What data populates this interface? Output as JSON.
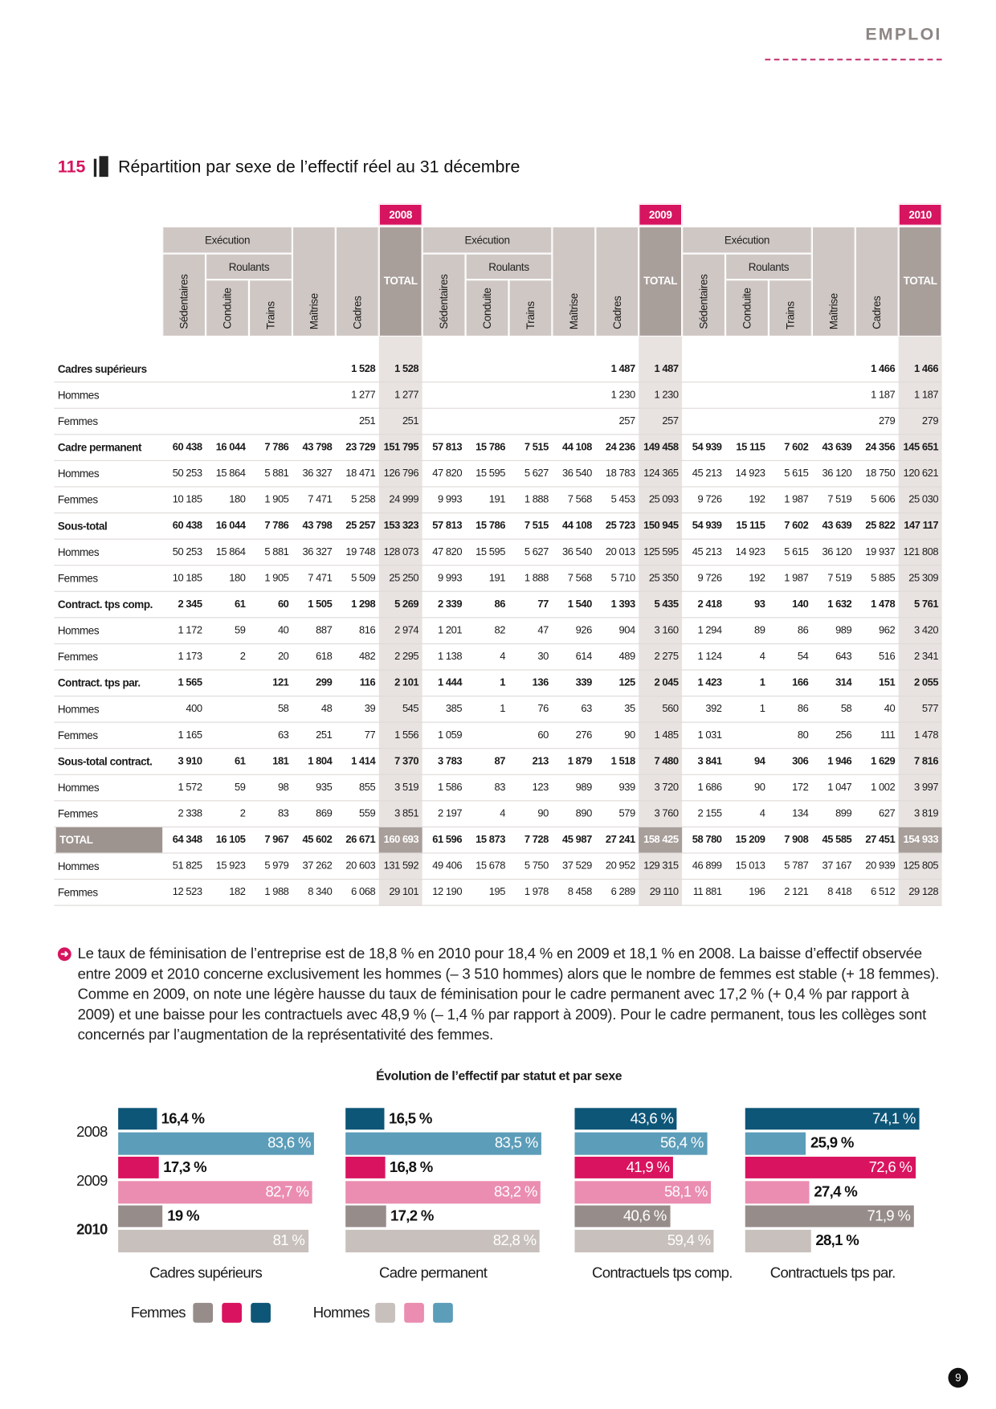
{
  "header": {
    "section": "EMPLOI",
    "page_number": "9"
  },
  "table": {
    "number": "115",
    "title": "Répartition par sexe de l’effectif réel au 31 décembre",
    "years": [
      "2008",
      "2009",
      "2010"
    ],
    "execution_label": "Exécution",
    "roulants_label": "Roulants",
    "columns": [
      "Sédentaires",
      "Conduite",
      "Trains",
      "Maîtrise",
      "Cadres"
    ],
    "total_label": "TOTAL",
    "rows": [
      {
        "label": "Cadres supérieurs",
        "bold": true,
        "cells": [
          null,
          null,
          null,
          null,
          "1 528",
          "1 528",
          null,
          null,
          null,
          null,
          "1 487",
          "1 487",
          null,
          null,
          null,
          null,
          "1 466",
          "1 466"
        ]
      },
      {
        "label": "Hommes",
        "cells": [
          null,
          null,
          null,
          null,
          "1 277",
          "1 277",
          null,
          null,
          null,
          null,
          "1 230",
          "1 230",
          null,
          null,
          null,
          null,
          "1 187",
          "1 187"
        ]
      },
      {
        "label": "Femmes",
        "cells": [
          null,
          null,
          null,
          null,
          "251",
          "251",
          null,
          null,
          null,
          null,
          "257",
          "257",
          null,
          null,
          null,
          null,
          "279",
          "279"
        ]
      },
      {
        "label": "Cadre permanent",
        "bold": true,
        "cells": [
          "60 438",
          "16 044",
          "7 786",
          "43 798",
          "23 729",
          "151 795",
          "57 813",
          "15 786",
          "7 515",
          "44 108",
          "24 236",
          "149 458",
          "54 939",
          "15 115",
          "7 602",
          "43 639",
          "24 356",
          "145 651"
        ]
      },
      {
        "label": "Hommes",
        "cells": [
          "50 253",
          "15 864",
          "5 881",
          "36 327",
          "18 471",
          "126 796",
          "47 820",
          "15 595",
          "5 627",
          "36 540",
          "18 783",
          "124 365",
          "45 213",
          "14 923",
          "5 615",
          "36 120",
          "18 750",
          "120 621"
        ]
      },
      {
        "label": "Femmes",
        "cells": [
          "10 185",
          "180",
          "1 905",
          "7 471",
          "5 258",
          "24 999",
          "9 993",
          "191",
          "1 888",
          "7 568",
          "5 453",
          "25 093",
          "9 726",
          "192",
          "1 987",
          "7 519",
          "5 606",
          "25 030"
        ]
      },
      {
        "label": "Sous-total",
        "bold": true,
        "cells": [
          "60 438",
          "16 044",
          "7 786",
          "43 798",
          "25 257",
          "153 323",
          "57 813",
          "15 786",
          "7 515",
          "44 108",
          "25 723",
          "150 945",
          "54 939",
          "15 115",
          "7 602",
          "43 639",
          "25 822",
          "147 117"
        ]
      },
      {
        "label": "Hommes",
        "cells": [
          "50 253",
          "15 864",
          "5 881",
          "36 327",
          "19 748",
          "128 073",
          "47 820",
          "15 595",
          "5 627",
          "36 540",
          "20 013",
          "125 595",
          "45 213",
          "14 923",
          "5 615",
          "36 120",
          "19 937",
          "121 808"
        ]
      },
      {
        "label": "Femmes",
        "cells": [
          "10 185",
          "180",
          "1 905",
          "7 471",
          "5 509",
          "25 250",
          "9 993",
          "191",
          "1 888",
          "7 568",
          "5 710",
          "25 350",
          "9 726",
          "192",
          "1 987",
          "7 519",
          "5 885",
          "25 309"
        ]
      },
      {
        "label": "Contract. tps comp.",
        "bold": true,
        "cells": [
          "2 345",
          "61",
          "60",
          "1 505",
          "1 298",
          "5 269",
          "2 339",
          "86",
          "77",
          "1 540",
          "1 393",
          "5 435",
          "2 418",
          "93",
          "140",
          "1 632",
          "1 478",
          "5 761"
        ]
      },
      {
        "label": "Hommes",
        "cells": [
          "1 172",
          "59",
          "40",
          "887",
          "816",
          "2 974",
          "1 201",
          "82",
          "47",
          "926",
          "904",
          "3 160",
          "1 294",
          "89",
          "86",
          "989",
          "962",
          "3 420"
        ]
      },
      {
        "label": "Femmes",
        "cells": [
          "1 173",
          "2",
          "20",
          "618",
          "482",
          "2 295",
          "1 138",
          "4",
          "30",
          "614",
          "489",
          "2 275",
          "1 124",
          "4",
          "54",
          "643",
          "516",
          "2 341"
        ]
      },
      {
        "label": "Contract. tps par.",
        "bold": true,
        "cells": [
          "1 565",
          null,
          "121",
          "299",
          "116",
          "2 101",
          "1 444",
          "1",
          "136",
          "339",
          "125",
          "2 045",
          "1 423",
          "1",
          "166",
          "314",
          "151",
          "2 055"
        ]
      },
      {
        "label": "Hommes",
        "cells": [
          "400",
          null,
          "58",
          "48",
          "39",
          "545",
          "385",
          "1",
          "76",
          "63",
          "35",
          "560",
          "392",
          "1",
          "86",
          "58",
          "40",
          "577"
        ]
      },
      {
        "label": "Femmes",
        "cells": [
          "1 165",
          null,
          "63",
          "251",
          "77",
          "1 556",
          "1 059",
          null,
          "60",
          "276",
          "90",
          "1 485",
          "1 031",
          null,
          "80",
          "256",
          "111",
          "1 478"
        ]
      },
      {
        "label": "Sous-total contract.",
        "bold": true,
        "cells": [
          "3 910",
          "61",
          "181",
          "1 804",
          "1 414",
          "7 370",
          "3 783",
          "87",
          "213",
          "1 879",
          "1 518",
          "7 480",
          "3 841",
          "94",
          "306",
          "1 946",
          "1 629",
          "7 816"
        ]
      },
      {
        "label": "Hommes",
        "cells": [
          "1 572",
          "59",
          "98",
          "935",
          "855",
          "3 519",
          "1 586",
          "83",
          "123",
          "989",
          "939",
          "3 720",
          "1 686",
          "90",
          "172",
          "1 047",
          "1 002",
          "3 997"
        ]
      },
      {
        "label": "Femmes",
        "cells": [
          "2 338",
          "2",
          "83",
          "869",
          "559",
          "3 851",
          "2 197",
          "4",
          "90",
          "890",
          "579",
          "3 760",
          "2 155",
          "4",
          "134",
          "899",
          "627",
          "3 819"
        ]
      },
      {
        "label": "TOTAL",
        "bold": true,
        "highlight": true,
        "cells": [
          "64 348",
          "16 105",
          "7 967",
          "45 602",
          "26 671",
          "160 693",
          "61 596",
          "15 873",
          "7 728",
          "45 987",
          "27 241",
          "158 425",
          "58 780",
          "15 209",
          "7 908",
          "45 585",
          "27 451",
          "154 933"
        ]
      },
      {
        "label": "Hommes",
        "cells": [
          "51 825",
          "15 923",
          "5 979",
          "37 262",
          "20 603",
          "131 592",
          "49 406",
          "15 678",
          "5 750",
          "37 529",
          "20 952",
          "129 315",
          "46 899",
          "15 013",
          "5 787",
          "37 167",
          "20 939",
          "125 805"
        ]
      },
      {
        "label": "Femmes",
        "cells": [
          "12 523",
          "182",
          "1 988",
          "8 340",
          "6 068",
          "29 101",
          "12 190",
          "195",
          "1 978",
          "8 458",
          "6 289",
          "29 110",
          "11 881",
          "196",
          "2 121",
          "8 418",
          "6 512",
          "29 128"
        ]
      }
    ]
  },
  "paragraph": "Le taux de féminisation de l’entreprise est de 18,8 % en 2010 pour 18,4 % en 2009 et 18,1 % en 2008. La baisse d’effectif observée entre 2009 et 2010 concerne exclusivement les hommes (– 3 510 hommes) alors que le nombre de femmes est stable (+ 18 femmes). Comme en 2009, on note une légère hausse du taux de féminisation pour le cadre permanent avec 17,2 % (+ 0,4 % par rapport à 2009) et une baisse pour les contractuels avec 48,9 % (– 1,4 % par rapport à 2009). Pour le cadre permanent, tous les collèges sont concernés par l’augmentation de la représentativité des femmes.",
  "figure_title": "Évolution de l’effectif par statut et par sexe",
  "chart_data": [
    {
      "type": "bar",
      "orientation": "horizontal",
      "title": "Cadres supérieurs",
      "categories": [
        "2008",
        "2009",
        "2010"
      ],
      "xlim": [
        0,
        100
      ],
      "series": [
        {
          "name": "Femmes",
          "colors": [
            "#0e5677",
            "#d9135f",
            "#968c89"
          ],
          "values": [
            16.4,
            17.3,
            19
          ],
          "value_labels": [
            "16,4 %",
            "17,3 %",
            "19 %"
          ]
        },
        {
          "name": "Hommes",
          "colors": [
            "#5c9db9",
            "#ea8db0",
            "#c8c0bc"
          ],
          "values": [
            83.6,
            82.7,
            81
          ],
          "value_labels": [
            "83,6 %",
            "82,7 %",
            "81 %"
          ]
        }
      ]
    },
    {
      "type": "bar",
      "orientation": "horizontal",
      "title": "Cadre permanent",
      "xlim": [
        0,
        100
      ],
      "series": [
        {
          "colors": [
            "#0e5677",
            "#d9135f",
            "#968c89"
          ],
          "values": [
            16.5,
            16.8,
            17.2
          ],
          "value_labels": [
            "16,5 %",
            "16,8 %",
            "17,2 %"
          ]
        },
        {
          "colors": [
            "#5c9db9",
            "#ea8db0",
            "#c8c0bc"
          ],
          "values": [
            83.5,
            83.2,
            82.8
          ],
          "value_labels": [
            "83,5 %",
            "83,2 %",
            "82,8 %"
          ]
        }
      ]
    },
    {
      "type": "bar",
      "orientation": "horizontal",
      "title": "Contractuels tps comp.",
      "xlim": [
        0,
        100
      ],
      "series": [
        {
          "colors": [
            "#0e5677",
            "#d9135f",
            "#968c89"
          ],
          "values": [
            43.6,
            41.9,
            40.6
          ],
          "value_labels": [
            "43,6 %",
            "41,9 %",
            "40,6 %"
          ]
        },
        {
          "colors": [
            "#5c9db9",
            "#ea8db0",
            "#c8c0bc"
          ],
          "values": [
            56.4,
            58.1,
            59.4
          ],
          "value_labels": [
            "56,4 %",
            "58,1 %",
            "59,4 %"
          ]
        }
      ]
    },
    {
      "type": "bar",
      "orientation": "horizontal",
      "title": "Contractuels tps par.",
      "xlim": [
        0,
        100
      ],
      "series": [
        {
          "colors": [
            "#0e5677",
            "#d9135f",
            "#968c89"
          ],
          "values": [
            74.1,
            72.6,
            71.9
          ],
          "value_labels": [
            "74,1 %",
            "72,6 %",
            "71,9 %"
          ]
        },
        {
          "colors": [
            "#5c9db9",
            "#ea8db0",
            "#c8c0bc"
          ],
          "values": [
            25.9,
            27.4,
            28.1
          ],
          "value_labels": [
            "25,9 %",
            "27,4 %",
            "28,1 %"
          ]
        }
      ]
    }
  ]
}
